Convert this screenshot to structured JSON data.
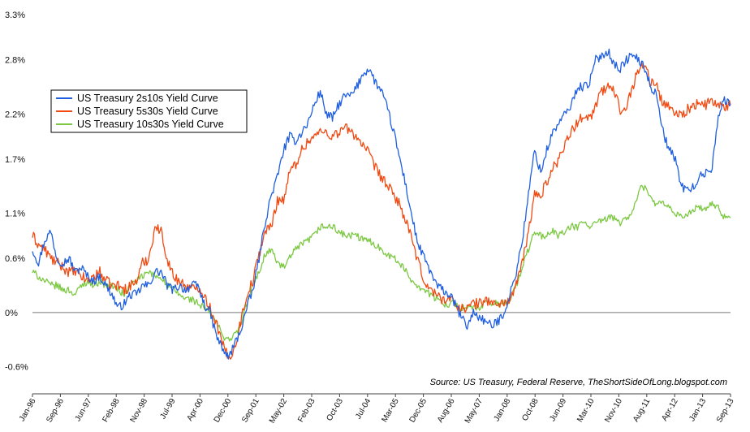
{
  "chart_data": {
    "type": "line",
    "title": "",
    "xlabel": "",
    "ylabel": "",
    "ylim": [
      -0.9,
      3.3
    ],
    "y_ticks": [
      {
        "value": -0.6,
        "label": "-0.6%"
      },
      {
        "value": 0.0,
        "label": "0%"
      },
      {
        "value": 0.6,
        "label": "0.6%"
      },
      {
        "value": 1.1,
        "label": "1.1%"
      },
      {
        "value": 1.7,
        "label": "1.7%"
      },
      {
        "value": 2.2,
        "label": "2.2%"
      },
      {
        "value": 2.8,
        "label": "2.8%"
      },
      {
        "value": 3.3,
        "label": "3.3%"
      }
    ],
    "x_ticks": [
      "Jan-96",
      "Sep-96",
      "Jun-97",
      "Feb-98",
      "Nov-98",
      "Jul-99",
      "Apr-00",
      "Dec-00",
      "Sep-01",
      "May-02",
      "Feb-03",
      "Oct-03",
      "Jul-04",
      "Mar-05",
      "Dec-05",
      "Aug-06",
      "May-07",
      "Jan-08",
      "Oct-08",
      "Jun-09",
      "Mar-10",
      "Nov-10",
      "Aug-11",
      "Apr-12",
      "Jan-13",
      "Sep-13"
    ],
    "zero_line": true,
    "grid": false,
    "legend_position": "top-left",
    "source": "Source: US Treasury, Federal Reserve, TheShortSideOfLong.blogspot.com",
    "series": [
      {
        "name": "US Treasury 2s10s Yield Curve",
        "color": "#1f5fe0",
        "values": [
          0.7,
          0.55,
          0.8,
          0.9,
          0.6,
          0.55,
          0.6,
          0.45,
          0.5,
          0.4,
          0.35,
          0.4,
          0.3,
          0.2,
          0.05,
          0.1,
          0.2,
          0.2,
          0.3,
          0.3,
          0.45,
          0.45,
          0.3,
          0.25,
          0.3,
          0.25,
          0.3,
          0.3,
          0.1,
          0.0,
          -0.25,
          -0.4,
          -0.5,
          -0.35,
          -0.2,
          0.05,
          0.25,
          0.6,
          1.0,
          1.3,
          1.5,
          1.8,
          1.95,
          1.9,
          2.0,
          2.1,
          2.3,
          2.45,
          2.2,
          2.15,
          2.3,
          2.4,
          2.4,
          2.5,
          2.65,
          2.7,
          2.55,
          2.45,
          2.25,
          2.0,
          1.7,
          1.4,
          1.05,
          0.75,
          0.6,
          0.45,
          0.3,
          0.25,
          0.2,
          0.1,
          -0.05,
          -0.15,
          0.0,
          -0.05,
          -0.1,
          -0.15,
          -0.1,
          0.0,
          0.2,
          0.45,
          0.8,
          1.3,
          1.8,
          1.55,
          1.8,
          2.0,
          2.1,
          2.2,
          2.3,
          2.5,
          2.5,
          2.55,
          2.8,
          2.85,
          2.9,
          2.75,
          2.7,
          2.8,
          2.85,
          2.8,
          2.7,
          2.5,
          2.4,
          2.0,
          1.8,
          1.7,
          1.4,
          1.35,
          1.4,
          1.5,
          1.55,
          1.6,
          2.2,
          2.35,
          2.3
        ]
      },
      {
        "name": "US Treasury 5s30s Yield Curve",
        "color": "#f04a12",
        "values": [
          0.85,
          0.75,
          0.7,
          0.6,
          0.55,
          0.5,
          0.45,
          0.45,
          0.4,
          0.35,
          0.4,
          0.45,
          0.35,
          0.3,
          0.3,
          0.25,
          0.3,
          0.35,
          0.55,
          0.6,
          0.95,
          0.9,
          0.6,
          0.4,
          0.35,
          0.3,
          0.25,
          0.3,
          0.2,
          0.05,
          -0.1,
          -0.35,
          -0.5,
          -0.4,
          -0.1,
          0.2,
          0.35,
          0.65,
          0.9,
          0.95,
          1.25,
          1.25,
          1.55,
          1.65,
          1.8,
          1.9,
          1.95,
          2.0,
          2.0,
          1.95,
          2.0,
          2.05,
          2.0,
          1.95,
          1.85,
          1.75,
          1.6,
          1.5,
          1.4,
          1.3,
          1.2,
          1.0,
          0.8,
          0.55,
          0.35,
          0.25,
          0.2,
          0.15,
          0.15,
          0.1,
          0.05,
          0.05,
          0.1,
          0.1,
          0.15,
          0.1,
          0.1,
          0.1,
          0.15,
          0.3,
          0.55,
          0.9,
          1.3,
          1.3,
          1.45,
          1.6,
          1.7,
          1.9,
          2.0,
          2.1,
          2.2,
          2.15,
          2.3,
          2.45,
          2.5,
          2.45,
          2.25,
          2.3,
          2.5,
          2.7,
          2.75,
          2.55,
          2.5,
          2.3,
          2.3,
          2.2,
          2.2,
          2.25,
          2.3,
          2.3,
          2.3,
          2.35,
          2.3,
          2.25,
          2.3
        ]
      },
      {
        "name": "US Treasury 10s30s Yield Curve",
        "color": "#7cc843",
        "values": [
          0.45,
          0.4,
          0.35,
          0.3,
          0.3,
          0.25,
          0.25,
          0.2,
          0.3,
          0.35,
          0.3,
          0.35,
          0.3,
          0.3,
          0.25,
          0.2,
          0.3,
          0.35,
          0.4,
          0.45,
          0.4,
          0.4,
          0.3,
          0.25,
          0.2,
          0.15,
          0.15,
          0.1,
          0.05,
          0.0,
          -0.1,
          -0.25,
          -0.3,
          -0.25,
          -0.15,
          0.1,
          0.3,
          0.45,
          0.65,
          0.7,
          0.55,
          0.5,
          0.6,
          0.7,
          0.75,
          0.8,
          0.85,
          0.95,
          0.95,
          0.95,
          0.9,
          0.85,
          0.85,
          0.85,
          0.8,
          0.8,
          0.75,
          0.7,
          0.65,
          0.6,
          0.55,
          0.45,
          0.35,
          0.3,
          0.25,
          0.2,
          0.15,
          0.1,
          0.1,
          0.1,
          0.05,
          0.05,
          0.05,
          0.05,
          0.1,
          0.1,
          0.1,
          0.1,
          0.15,
          0.3,
          0.5,
          0.7,
          0.9,
          0.85,
          0.85,
          0.9,
          0.85,
          0.9,
          0.95,
          0.95,
          1.0,
          0.95,
          1.0,
          1.0,
          1.05,
          1.05,
          1.0,
          1.05,
          1.1,
          1.35,
          1.4,
          1.25,
          1.2,
          1.2,
          1.15,
          1.1,
          1.05,
          1.1,
          1.15,
          1.15,
          1.15,
          1.2,
          1.15,
          1.05,
          1.05
        ]
      }
    ]
  }
}
